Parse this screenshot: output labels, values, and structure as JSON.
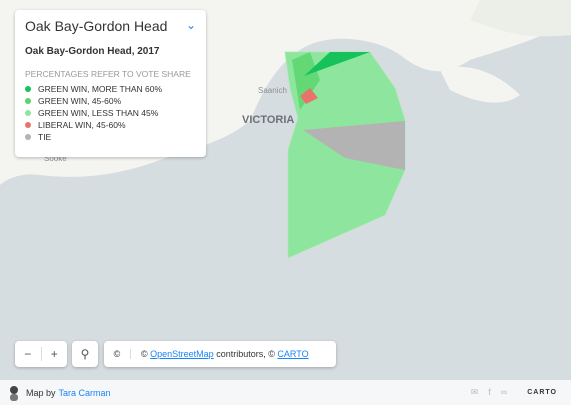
{
  "panel": {
    "title": "Oak Bay-Gordon Head",
    "subtitle": "Oak Bay-Gordon Head, 2017",
    "note": "PERCENTAGES REFER TO VOTE SHARE",
    "legend": [
      {
        "label": "GREEN WIN, MORE THAN 60%",
        "color": "#15c35a"
      },
      {
        "label": "GREEN WIN, 45-60%",
        "color": "#5ad46a"
      },
      {
        "label": "GREEN WIN, LESS THAN 45%",
        "color": "#8ee59e"
      },
      {
        "label": "LIBERAL WIN, 45-60%",
        "color": "#e8736a"
      },
      {
        "label": "TIE",
        "color": "#b3b3b3"
      }
    ]
  },
  "map_labels": {
    "saanich": "Saanich",
    "victoria": "VICTORIA",
    "sooke": "Sooke"
  },
  "attribution": {
    "copyright": "©",
    "prefix": "©",
    "osm": "OpenStreetMap",
    "middle": "contributors, ©",
    "carto": "CARTO"
  },
  "footer": {
    "by": "Map by",
    "author": "Tara Carman",
    "brand": "CARTO"
  }
}
